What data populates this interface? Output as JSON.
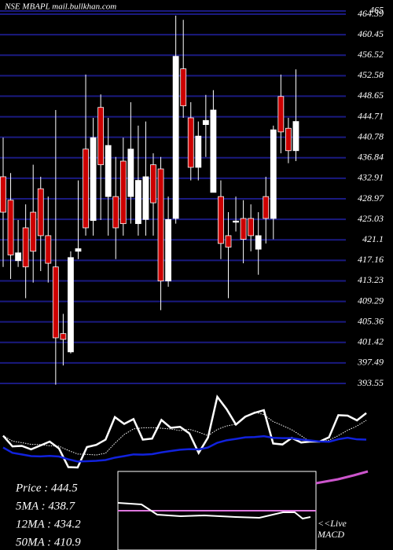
{
  "chart_data": {
    "type": "candlestick",
    "title": "NSE MBAPL mail.bullkhan.com",
    "open": [
      433.2,
      428.7,
      417.1,
      423.4,
      426.4,
      430.9,
      421.9,
      415.9,
      403.1,
      399.6,
      418.9,
      438.5,
      424.8,
      446.5,
      429.4,
      429.4,
      436.2,
      429.4,
      424.2,
      425.0,
      435.5,
      434.7,
      413.2,
      425.2,
      453.9,
      444.5,
      435.0,
      443.2,
      430.2,
      429.4,
      421.9,
      424.5,
      425.2,
      425.2,
      419.3,
      429.4,
      425.2,
      448.6,
      442.5,
      438.2
    ],
    "high": [
      440.7,
      433.9,
      424.9,
      427.9,
      435.5,
      433.2,
      429.4,
      446.0,
      406.9,
      418.9,
      432.5,
      452.8,
      444.5,
      449.0,
      444.5,
      437.0,
      440.7,
      447.5,
      443.0,
      443.8,
      437.7,
      437.0,
      429.4,
      464.1,
      463.3,
      447.5,
      443.8,
      448.9,
      449.8,
      432.5,
      426.4,
      429.4,
      428.7,
      427.9,
      426.4,
      433.2,
      443.0,
      452.8,
      444.5,
      453.8
    ],
    "low": [
      415.9,
      413.6,
      415.9,
      409.9,
      412.9,
      415.1,
      412.9,
      393.3,
      397.0,
      399.3,
      417.4,
      421.9,
      421.9,
      424.9,
      421.9,
      417.4,
      421.9,
      424.2,
      421.9,
      421.9,
      421.9,
      407.6,
      412.1,
      424.2,
      444.5,
      432.5,
      432.5,
      437.0,
      430.2,
      417.4,
      409.9,
      422.7,
      416.6,
      418.9,
      414.4,
      420.4,
      421.2,
      437.7,
      435.8,
      436.2
    ],
    "close": [
      426.4,
      418.2,
      418.6,
      415.9,
      418.9,
      421.9,
      416.6,
      402.3,
      402.0,
      417.7,
      419.4,
      423.4,
      440.7,
      435.5,
      439.2,
      423.4,
      424.2,
      438.5,
      432.5,
      433.2,
      428.2,
      413.2,
      425.0,
      456.3,
      446.8,
      435.0,
      441.0,
      444.0,
      446.0,
      420.4,
      419.7,
      424.7,
      421.2,
      421.9,
      421.9,
      425.2,
      442.2,
      441.8,
      438.2,
      443.8
    ],
    "up_color": "#ffffff",
    "down_color": "#cc0000",
    "grid_color": "#1a1a80",
    "ylim": [
      393.25,
      466.35
    ],
    "yticks": [
      465,
      464.39,
      460.45,
      456.52,
      452.58,
      448.65,
      444.71,
      440.78,
      436.84,
      432.91,
      428.97,
      425.03,
      421.1,
      417.16,
      413.23,
      409.29,
      405.36,
      401.42,
      397.49,
      393.55
    ],
    "info": [
      "Price  : 444.5",
      "5MA : 438.7",
      "12MA : 434.2",
      "50MA : 410.9"
    ],
    "live_label": [
      "<<Live",
      "MACD"
    ]
  }
}
